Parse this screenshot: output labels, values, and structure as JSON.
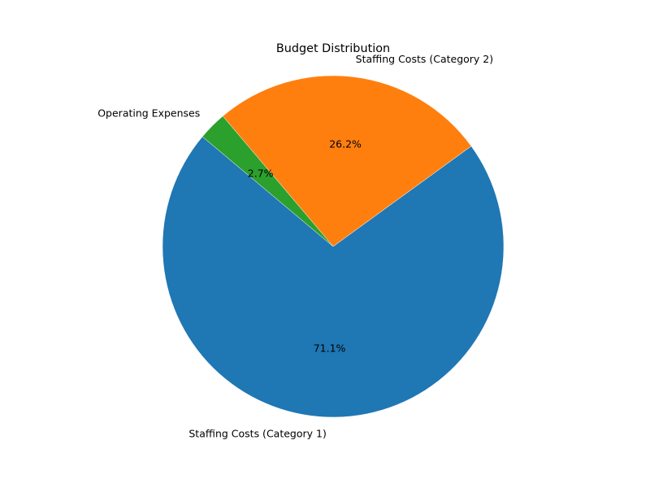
{
  "chart_data": {
    "type": "pie",
    "title": "Budget Distribution",
    "slices": [
      {
        "label": "Staffing Costs (Category 1)",
        "percent": 71.1,
        "percent_label": "71.1%",
        "color": "#1f77b4"
      },
      {
        "label": "Staffing Costs (Category 2)",
        "percent": 26.2,
        "percent_label": "26.2%",
        "color": "#ff7f0e"
      },
      {
        "label": "Operating Expenses",
        "percent": 2.7,
        "percent_label": "2.7%",
        "color": "#2ca02c"
      }
    ],
    "start_angle_deg": 140,
    "direction": "counterclockwise",
    "legend": "none"
  }
}
